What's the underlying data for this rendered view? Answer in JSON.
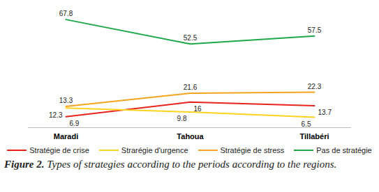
{
  "chart_data": {
    "type": "line",
    "title": "Figure 2. Types of strategies according to the periods according to the regions.",
    "categories": [
      "Maradi",
      "Tahoua",
      "Tillabéri"
    ],
    "series": [
      {
        "name": "Stratégie de crise",
        "color": "#e8231c",
        "values": [
          6.9,
          16,
          13.7
        ]
      },
      {
        "name": "Strarégie d'urgence",
        "color": "#ffd21e",
        "values": [
          12.3,
          9.8,
          6.5
        ]
      },
      {
        "name": "Stratégie de stress",
        "color": "#f5a21f",
        "values": [
          13.3,
          21.6,
          22.3
        ]
      },
      {
        "name": "Pas de stratégie",
        "color": "#1ea84a",
        "values": [
          67.8,
          52.5,
          57.5
        ]
      }
    ],
    "ylim": [
      0,
      72
    ],
    "grid": false,
    "legend": "bottom",
    "data_labels": true,
    "tick_labels": "x"
  }
}
